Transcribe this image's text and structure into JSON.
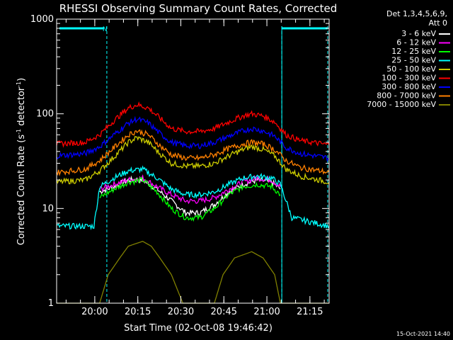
{
  "chart_data": {
    "type": "line",
    "title": "RHESSI Observing Summary Count Rates, Corrected",
    "xlabel": "Start Time (02-Oct-08 19:46:42)",
    "ylabel_main": "Corrected Count Rate (s",
    "ylabel_sup1": "-1",
    "ylabel_mid": " detector",
    "ylabel_sup2": "-1",
    "ylabel_end": ")",
    "yscale": "log",
    "ylim": [
      1,
      1000
    ],
    "xlim_min": [
      0,
      95
    ],
    "x_tick_labels": [
      {
        "label": "20:00",
        "t": 13.3
      },
      {
        "label": "20:15",
        "t": 28.3
      },
      {
        "label": "20:30",
        "t": 43.3
      },
      {
        "label": "20:45",
        "t": 58.3
      },
      {
        "label": "21:00",
        "t": 73.3
      },
      {
        "label": "21:15",
        "t": 88.3
      }
    ],
    "y_tick_labels": [
      {
        "label": "1",
        "v": 1
      },
      {
        "label": "10",
        "v": 10
      },
      {
        "label": "100",
        "v": 100
      },
      {
        "label": "1000",
        "v": 1000
      }
    ],
    "legend_header": [
      "Det 1,3,4,5,6,9,",
      "Att 0"
    ],
    "legend_placement": "right",
    "annotation_n": "N",
    "night_start_min": 17.5,
    "night_end_min": 78.5,
    "night_bar_value": 800,
    "series": [
      {
        "name": "3 - 6 keV",
        "color": "#ffffff",
        "points": [
          [
            15,
            15
          ],
          [
            20,
            17
          ],
          [
            25,
            20
          ],
          [
            30,
            20
          ],
          [
            35,
            16
          ],
          [
            40,
            12
          ],
          [
            45,
            9
          ],
          [
            50,
            9
          ],
          [
            55,
            11
          ],
          [
            60,
            15
          ],
          [
            65,
            18
          ],
          [
            70,
            20
          ],
          [
            75,
            19
          ],
          [
            78,
            16
          ]
        ]
      },
      {
        "name": "6 - 12 keV",
        "color": "#ff00ff",
        "points": [
          [
            15,
            16
          ],
          [
            20,
            18
          ],
          [
            25,
            20
          ],
          [
            30,
            21
          ],
          [
            35,
            17
          ],
          [
            40,
            14
          ],
          [
            45,
            12
          ],
          [
            50,
            12
          ],
          [
            55,
            13
          ],
          [
            60,
            16
          ],
          [
            65,
            19
          ],
          [
            70,
            21
          ],
          [
            75,
            20
          ],
          [
            78,
            17
          ]
        ]
      },
      {
        "name": "12 - 25 keV",
        "color": "#00ff00",
        "points": [
          [
            15,
            13
          ],
          [
            20,
            16
          ],
          [
            25,
            19
          ],
          [
            30,
            20
          ],
          [
            35,
            15
          ],
          [
            40,
            10
          ],
          [
            45,
            8
          ],
          [
            50,
            8
          ],
          [
            55,
            10
          ],
          [
            60,
            14
          ],
          [
            65,
            17
          ],
          [
            70,
            18
          ],
          [
            75,
            17
          ],
          [
            78,
            14
          ]
        ]
      },
      {
        "name": "25 - 50 keV",
        "color": "#00ffff",
        "points": [
          [
            0,
            6.5
          ],
          [
            13,
            6.5
          ],
          [
            15,
            17
          ],
          [
            20,
            21
          ],
          [
            25,
            25
          ],
          [
            30,
            26
          ],
          [
            35,
            21
          ],
          [
            40,
            16
          ],
          [
            45,
            14
          ],
          [
            50,
            14
          ],
          [
            55,
            15
          ],
          [
            60,
            18
          ],
          [
            65,
            21
          ],
          [
            70,
            22
          ],
          [
            75,
            21
          ],
          [
            78,
            18
          ],
          [
            82,
            8
          ],
          [
            95,
            6.5
          ]
        ]
      },
      {
        "name": "50 - 100 keV",
        "color": "#cccc00",
        "points": [
          [
            0,
            19
          ],
          [
            10,
            20
          ],
          [
            15,
            25
          ],
          [
            20,
            35
          ],
          [
            25,
            50
          ],
          [
            28,
            56
          ],
          [
            32,
            50
          ],
          [
            36,
            38
          ],
          [
            40,
            30
          ],
          [
            45,
            28
          ],
          [
            50,
            28
          ],
          [
            55,
            30
          ],
          [
            60,
            36
          ],
          [
            65,
            42
          ],
          [
            68,
            45
          ],
          [
            72,
            42
          ],
          [
            76,
            36
          ],
          [
            80,
            26
          ],
          [
            85,
            22
          ],
          [
            95,
            19
          ]
        ]
      },
      {
        "name": "100 - 300 keV",
        "color": "#ff0000",
        "points": [
          [
            0,
            48
          ],
          [
            10,
            50
          ],
          [
            15,
            60
          ],
          [
            20,
            85
          ],
          [
            25,
            115
          ],
          [
            28,
            125
          ],
          [
            32,
            115
          ],
          [
            36,
            90
          ],
          [
            40,
            70
          ],
          [
            45,
            65
          ],
          [
            50,
            65
          ],
          [
            55,
            70
          ],
          [
            60,
            82
          ],
          [
            65,
            95
          ],
          [
            68,
            100
          ],
          [
            72,
            95
          ],
          [
            76,
            82
          ],
          [
            80,
            60
          ],
          [
            85,
            52
          ],
          [
            95,
            47
          ]
        ]
      },
      {
        "name": "300 - 800 keV",
        "color": "#0000ff",
        "points": [
          [
            0,
            36
          ],
          [
            10,
            38
          ],
          [
            15,
            45
          ],
          [
            20,
            60
          ],
          [
            25,
            80
          ],
          [
            28,
            88
          ],
          [
            32,
            80
          ],
          [
            36,
            62
          ],
          [
            40,
            50
          ],
          [
            45,
            46
          ],
          [
            50,
            46
          ],
          [
            55,
            50
          ],
          [
            60,
            58
          ],
          [
            65,
            66
          ],
          [
            68,
            70
          ],
          [
            72,
            66
          ],
          [
            76,
            58
          ],
          [
            80,
            44
          ],
          [
            85,
            38
          ],
          [
            95,
            34
          ]
        ]
      },
      {
        "name": "800 - 7000 keV",
        "color": "#ff8000",
        "points": [
          [
            0,
            24
          ],
          [
            10,
            26
          ],
          [
            15,
            32
          ],
          [
            20,
            44
          ],
          [
            25,
            60
          ],
          [
            28,
            66
          ],
          [
            32,
            60
          ],
          [
            36,
            46
          ],
          [
            40,
            37
          ],
          [
            45,
            34
          ],
          [
            50,
            34
          ],
          [
            55,
            37
          ],
          [
            60,
            43
          ],
          [
            65,
            48
          ],
          [
            68,
            50
          ],
          [
            72,
            48
          ],
          [
            76,
            42
          ],
          [
            80,
            32
          ],
          [
            85,
            27
          ],
          [
            95,
            24
          ]
        ]
      },
      {
        "name": "7000 - 15000 keV",
        "color": "#808000",
        "points": [
          [
            0,
            1
          ],
          [
            15,
            1
          ],
          [
            18,
            2
          ],
          [
            22,
            3
          ],
          [
            25,
            4
          ],
          [
            30,
            4.5
          ],
          [
            33,
            4
          ],
          [
            36,
            3
          ],
          [
            40,
            2
          ],
          [
            44,
            1
          ],
          [
            55,
            1
          ],
          [
            58,
            2
          ],
          [
            62,
            3
          ],
          [
            68,
            3.5
          ],
          [
            72,
            3
          ],
          [
            76,
            2
          ],
          [
            78,
            1
          ],
          [
            95,
            1
          ]
        ]
      }
    ]
  },
  "footer": {
    "timestamp": "15-Oct-2021 14:40"
  }
}
